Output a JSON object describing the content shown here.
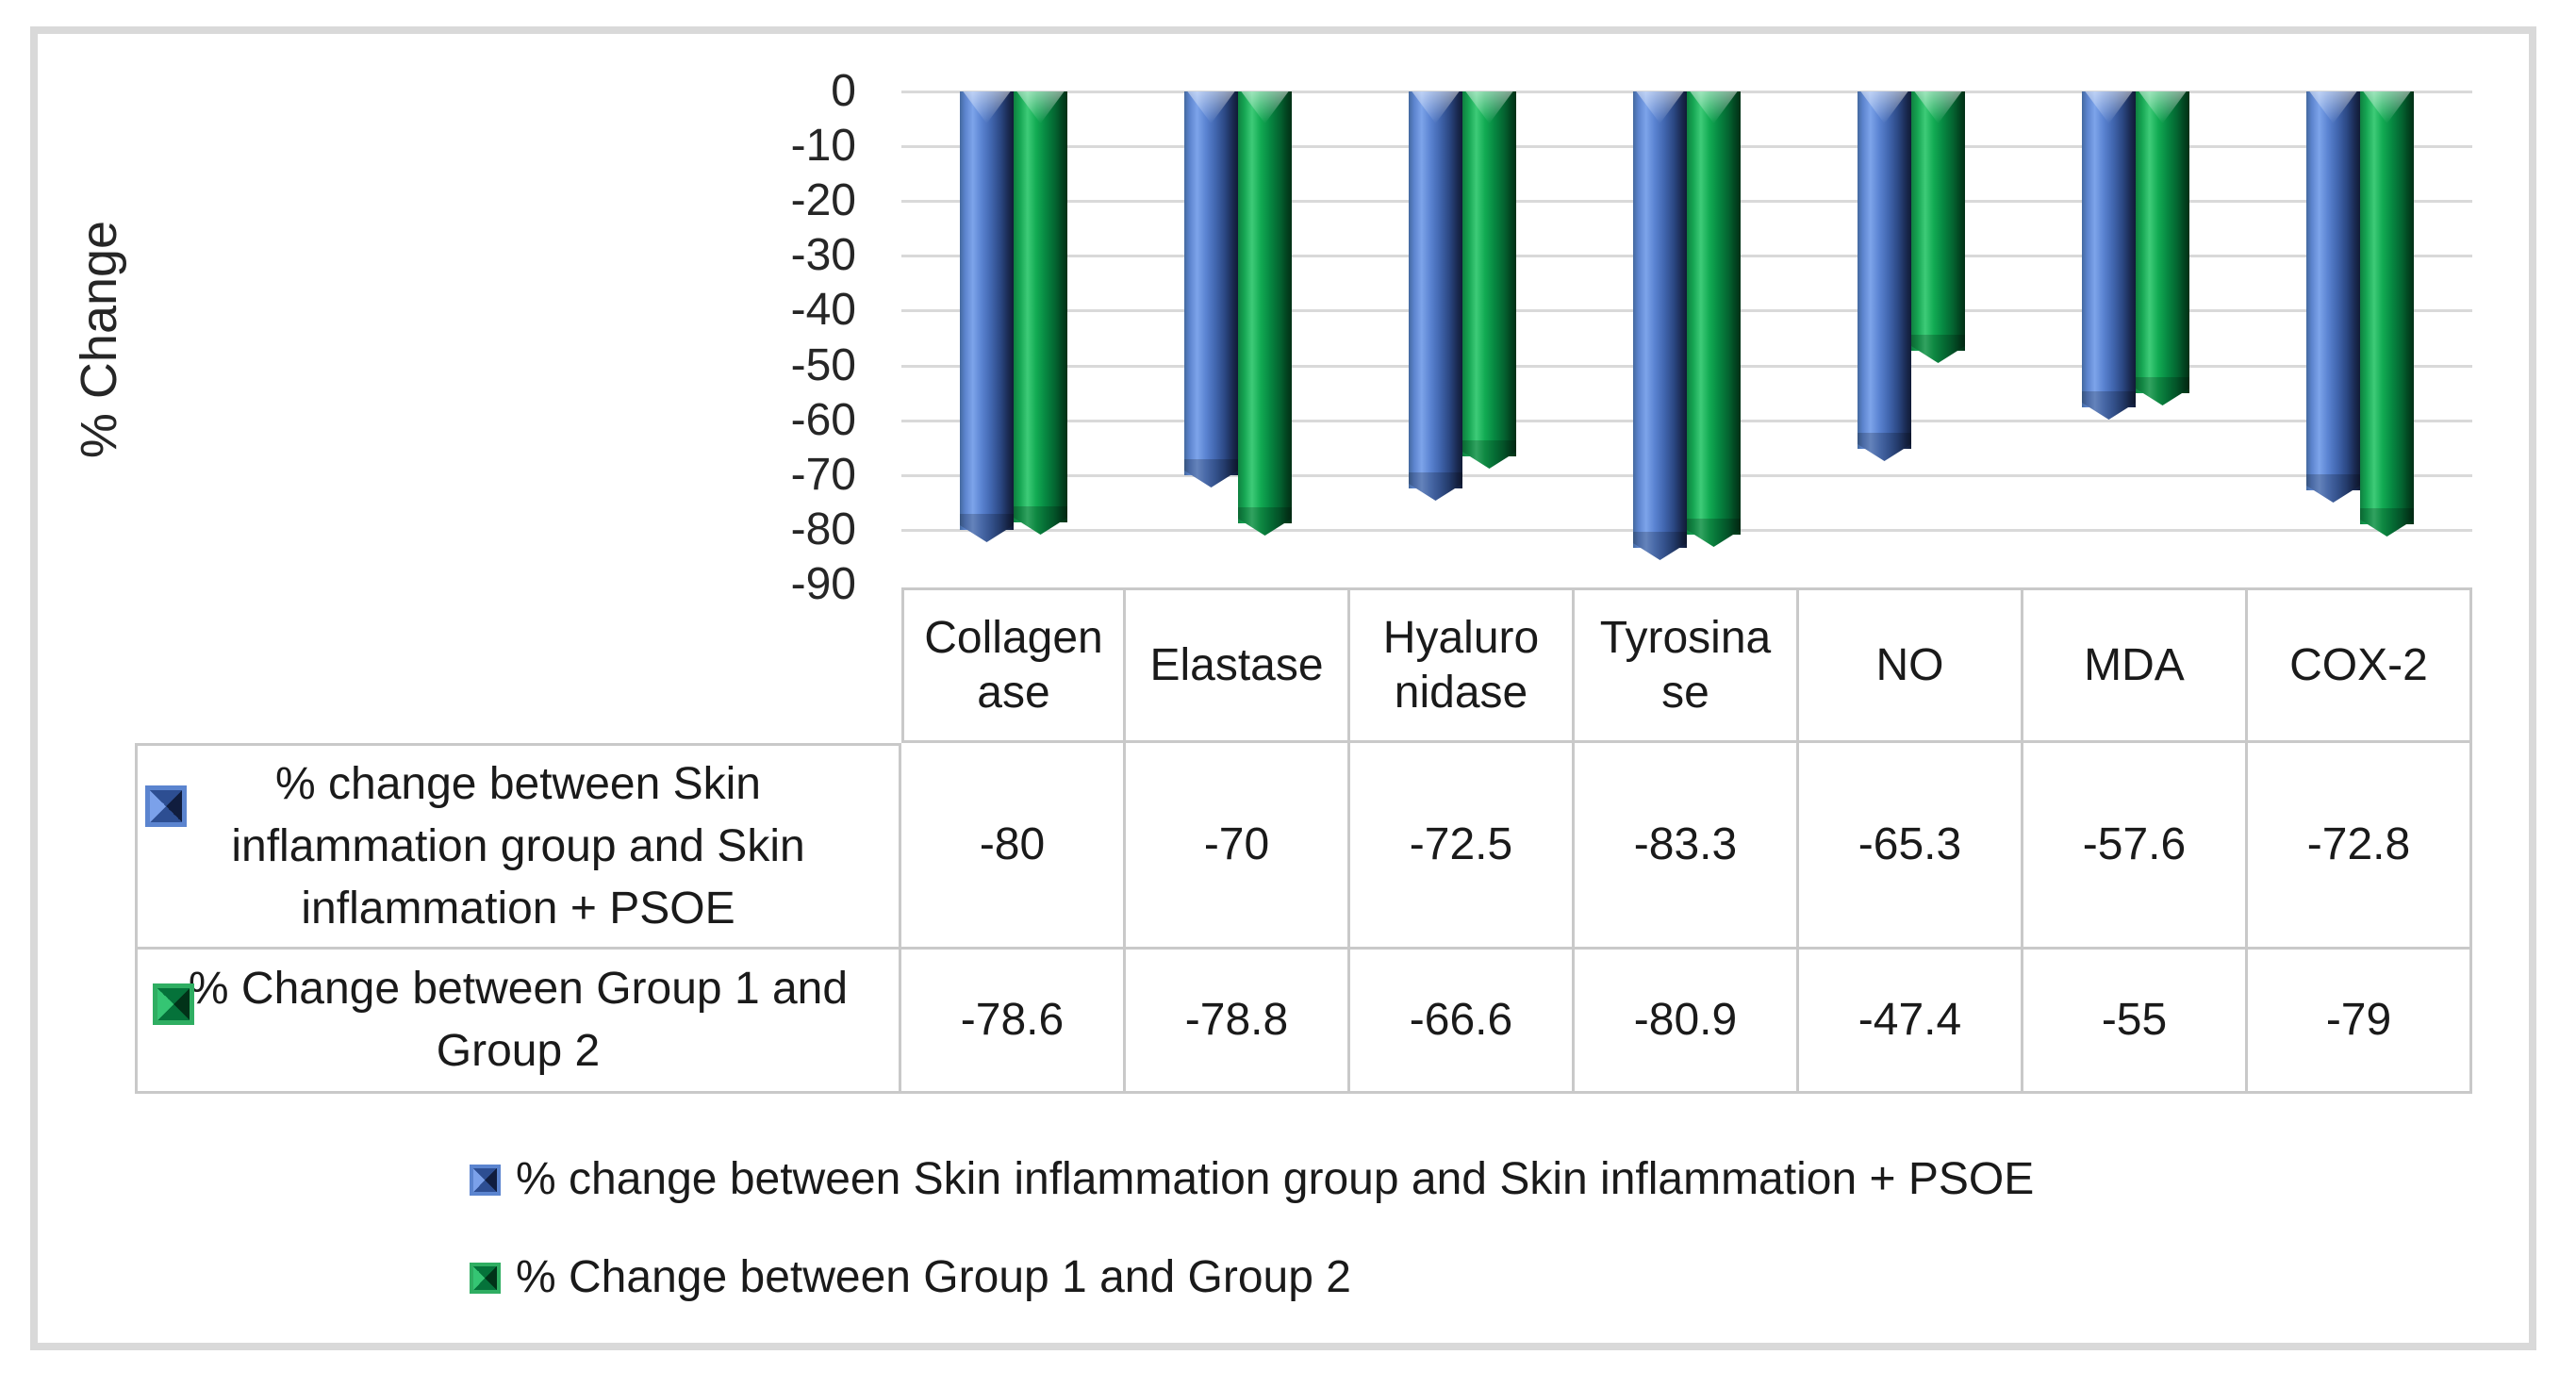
{
  "page": {
    "background": "#ffffff",
    "frame_border_color": "#d9d9d9",
    "gridline_color": "#d9d9d9",
    "table_border_color": "#c9c9c9",
    "text_color": "#1a1a1a"
  },
  "chart_data": {
    "type": "bar",
    "bar_style": "3d-cylinder",
    "title": "",
    "xlabel": "",
    "ylabel": "% Change",
    "ylim": [
      -90,
      0
    ],
    "yticks": [
      0,
      -10,
      -20,
      -30,
      -40,
      -50,
      -60,
      -70,
      -80,
      -90
    ],
    "grid": true,
    "legend_position": "bottom",
    "categories": [
      "Collagenase",
      "Elastase",
      "Hyaluronidase",
      "Tyrosinase",
      "NO",
      "MDA",
      "COX-2"
    ],
    "category_display": [
      "Collagen\nase",
      "Elastase",
      "Hyaluro\nnidase",
      "Tyrosina\nse",
      "NO",
      "MDA",
      "COX-2"
    ],
    "series": [
      {
        "name": "% change between Skin inflammation group and Skin inflammation + PSOE",
        "color": "#4472C4",
        "values": [
          -80,
          -70,
          -72.5,
          -83.3,
          -65.3,
          -57.6,
          -72.8
        ]
      },
      {
        "name": "% Change between Group 1 and Group 2",
        "color": "#00B050",
        "values": [
          -78.6,
          -78.8,
          -66.6,
          -80.9,
          -47.4,
          -55,
          -79
        ]
      }
    ],
    "data_table": {
      "shown": true,
      "row_labels_display": [
        "% change between Skin\ninflammation group and Skin\ninflammation + PSOE",
        "% Change between Group 1 and\nGroup 2"
      ]
    },
    "legend": {
      "items": [
        "% change between Skin inflammation group and Skin inflammation + PSOE",
        "% Change between Group 1 and Group 2"
      ]
    }
  }
}
